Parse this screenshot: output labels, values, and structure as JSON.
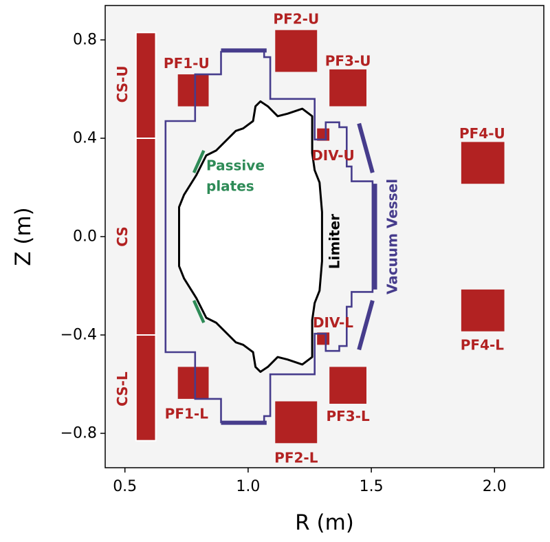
{
  "chart_data": {
    "type": "diagram",
    "xlabel": "R (m)",
    "ylabel": "Z (m)",
    "xlim": [
      0.42,
      2.2
    ],
    "ylim": [
      -0.94,
      0.94
    ],
    "xticks": [
      {
        "value": 0.5,
        "label": "0.5"
      },
      {
        "value": 1.0,
        "label": "1.0"
      },
      {
        "value": 1.5,
        "label": "1.5"
      },
      {
        "value": 2.0,
        "label": "2.0"
      }
    ],
    "yticks": [
      {
        "value": 0.8,
        "label": "0.8"
      },
      {
        "value": 0.4,
        "label": "0.4"
      },
      {
        "value": 0.0,
        "label": "0.0"
      },
      {
        "value": -0.4,
        "label": "−0.4"
      },
      {
        "value": -0.8,
        "label": "−0.8"
      }
    ],
    "colors": {
      "coil": "#b22222",
      "vessel": "#463c8c",
      "passive": "#2e8b57",
      "limiter": "#000000",
      "background": "#f4f4f4",
      "frame": "#000000"
    },
    "coils": [
      {
        "name": "cs-u",
        "label": "CS-U",
        "r": [
          0.545,
          0.625
        ],
        "z": [
          0.4,
          0.83
        ],
        "vertical": true,
        "label_rz": [
          0.49,
          0.62
        ]
      },
      {
        "name": "cs",
        "label": "CS",
        "r": [
          0.545,
          0.625
        ],
        "z": [
          -0.4,
          0.4
        ],
        "vertical": true,
        "label_rz": [
          0.49,
          0.0
        ]
      },
      {
        "name": "cs-l",
        "label": "CS-L",
        "r": [
          0.545,
          0.625
        ],
        "z": [
          -0.83,
          -0.4
        ],
        "vertical": true,
        "label_rz": [
          0.49,
          -0.62
        ]
      },
      {
        "name": "pf1-u",
        "label": "PF1-U",
        "r": [
          0.715,
          0.84
        ],
        "z": [
          0.53,
          0.66
        ],
        "label_rz": [
          0.75,
          0.705
        ]
      },
      {
        "name": "pf1-l",
        "label": "PF1-L",
        "r": [
          0.715,
          0.84
        ],
        "z": [
          -0.66,
          -0.53
        ],
        "label_rz": [
          0.75,
          -0.72
        ]
      },
      {
        "name": "pf2-u",
        "label": "PF2-U",
        "r": [
          1.11,
          1.28
        ],
        "z": [
          0.67,
          0.84
        ],
        "label_rz": [
          1.195,
          0.885
        ]
      },
      {
        "name": "pf2-l",
        "label": "PF2-L",
        "r": [
          1.11,
          1.28
        ],
        "z": [
          -0.84,
          -0.67
        ],
        "label_rz": [
          1.195,
          -0.9
        ]
      },
      {
        "name": "pf3-u",
        "label": "PF3-U",
        "r": [
          1.33,
          1.48
        ],
        "z": [
          0.53,
          0.68
        ],
        "label_rz": [
          1.405,
          0.715
        ]
      },
      {
        "name": "pf3-l",
        "label": "PF3-L",
        "r": [
          1.33,
          1.48
        ],
        "z": [
          -0.68,
          -0.53
        ],
        "label_rz": [
          1.405,
          -0.73
        ]
      },
      {
        "name": "div-u",
        "label": "DIV-U",
        "r": [
          1.28,
          1.33
        ],
        "z": [
          0.39,
          0.44
        ],
        "label_rz": [
          1.345,
          0.33
        ]
      },
      {
        "name": "div-l",
        "label": "DIV-L",
        "r": [
          1.28,
          1.33
        ],
        "z": [
          -0.44,
          -0.39
        ],
        "label_rz": [
          1.345,
          -0.35
        ]
      },
      {
        "name": "pf4-u",
        "label": "PF4-U",
        "r": [
          1.865,
          2.04
        ],
        "z": [
          0.215,
          0.385
        ],
        "label_rz": [
          1.95,
          0.42
        ]
      },
      {
        "name": "pf4-l",
        "label": "PF4-L",
        "r": [
          1.865,
          2.04
        ],
        "z": [
          -0.385,
          -0.215
        ],
        "label_rz": [
          1.95,
          -0.44
        ]
      }
    ],
    "vessel": {
      "label": "Vacuum Vessel",
      "label_rz": [
        1.585,
        0.0
      ],
      "outline_rz": [
        [
          0.89,
          0.755
        ],
        [
          0.89,
          0.66
        ],
        [
          0.785,
          0.66
        ],
        [
          0.785,
          0.47
        ],
        [
          0.665,
          0.47
        ],
        [
          0.665,
          -0.47
        ],
        [
          0.785,
          -0.47
        ],
        [
          0.785,
          -0.66
        ],
        [
          0.89,
          -0.66
        ],
        [
          0.89,
          -0.755
        ],
        [
          1.065,
          -0.755
        ],
        [
          1.065,
          -0.73
        ],
        [
          1.09,
          -0.73
        ],
        [
          1.09,
          -0.56
        ],
        [
          1.27,
          -0.56
        ],
        [
          1.27,
          -0.395
        ],
        [
          1.315,
          -0.395
        ],
        [
          1.315,
          -0.465
        ],
        [
          1.37,
          -0.465
        ],
        [
          1.37,
          -0.445
        ],
        [
          1.4,
          -0.445
        ],
        [
          1.4,
          -0.285
        ],
        [
          1.42,
          -0.285
        ],
        [
          1.42,
          -0.225
        ],
        [
          1.505,
          -0.225
        ],
        [
          1.505,
          0.225
        ],
        [
          1.42,
          0.225
        ],
        [
          1.42,
          0.285
        ],
        [
          1.4,
          0.285
        ],
        [
          1.4,
          0.445
        ],
        [
          1.37,
          0.445
        ],
        [
          1.37,
          0.465
        ],
        [
          1.315,
          0.465
        ],
        [
          1.315,
          0.395
        ],
        [
          1.27,
          0.395
        ],
        [
          1.27,
          0.56
        ],
        [
          1.09,
          0.56
        ],
        [
          1.09,
          0.73
        ],
        [
          1.065,
          0.73
        ],
        [
          1.065,
          0.755
        ],
        [
          0.89,
          0.755
        ]
      ],
      "thick_segments": [
        {
          "name": "vessel-top-plate",
          "points": [
            [
              0.89,
              0.757
            ],
            [
              1.075,
              0.757
            ]
          ]
        },
        {
          "name": "vessel-bottom-plate",
          "points": [
            [
              0.89,
              -0.757
            ],
            [
              1.075,
              -0.757
            ]
          ]
        },
        {
          "name": "vessel-upper-baffle",
          "points": [
            [
              1.45,
              0.46
            ],
            [
              1.505,
              0.26
            ]
          ]
        },
        {
          "name": "vessel-lower-baffle",
          "points": [
            [
              1.505,
              -0.26
            ],
            [
              1.45,
              -0.46
            ]
          ]
        },
        {
          "name": "vessel-outer-wall",
          "points": [
            [
              1.515,
              0.215
            ],
            [
              1.515,
              -0.215
            ]
          ]
        }
      ]
    },
    "limiter": {
      "label": "Limiter",
      "label_rz": [
        1.35,
        -0.02
      ],
      "outline_rz": [
        [
          1.05,
          0.55
        ],
        [
          1.08,
          0.53
        ],
        [
          1.12,
          0.49
        ],
        [
          1.16,
          0.5
        ],
        [
          1.22,
          0.52
        ],
        [
          1.26,
          0.49
        ],
        [
          1.26,
          0.34
        ],
        [
          1.27,
          0.27
        ],
        [
          1.29,
          0.22
        ],
        [
          1.3,
          0.1
        ],
        [
          1.3,
          -0.1
        ],
        [
          1.29,
          -0.22
        ],
        [
          1.27,
          -0.27
        ],
        [
          1.26,
          -0.34
        ],
        [
          1.26,
          -0.49
        ],
        [
          1.22,
          -0.52
        ],
        [
          1.16,
          -0.5
        ],
        [
          1.12,
          -0.49
        ],
        [
          1.08,
          -0.53
        ],
        [
          1.05,
          -0.55
        ],
        [
          1.03,
          -0.53
        ],
        [
          1.02,
          -0.47
        ],
        [
          0.98,
          -0.44
        ],
        [
          0.95,
          -0.43
        ],
        [
          0.87,
          -0.35
        ],
        [
          0.83,
          -0.33
        ],
        [
          0.79,
          -0.25
        ],
        [
          0.74,
          -0.17
        ],
        [
          0.72,
          -0.12
        ],
        [
          0.72,
          0.12
        ],
        [
          0.74,
          0.17
        ],
        [
          0.79,
          0.25
        ],
        [
          0.83,
          0.33
        ],
        [
          0.87,
          0.35
        ],
        [
          0.95,
          0.43
        ],
        [
          0.98,
          0.44
        ],
        [
          1.02,
          0.47
        ],
        [
          1.03,
          0.53
        ],
        [
          1.05,
          0.55
        ]
      ]
    },
    "passive_plates": {
      "label_lines": [
        "Passive",
        "plates"
      ],
      "label_rz": [
        0.83,
        0.27
      ],
      "segments": [
        {
          "name": "passive-plate-upper-left",
          "points": [
            [
              0.78,
              0.26
            ],
            [
              0.82,
              0.35
            ]
          ]
        },
        {
          "name": "passive-plate-lower-left",
          "points": [
            [
              0.78,
              -0.26
            ],
            [
              0.82,
              -0.35
            ]
          ]
        },
        {
          "name": "passive-plate-upper-right",
          "points": [
            [
              1.27,
              0.25
            ],
            [
              1.28,
              0.21
            ]
          ]
        },
        {
          "name": "passive-plate-lower-right",
          "points": [
            [
              1.27,
              -0.25
            ],
            [
              1.28,
              -0.21
            ]
          ]
        }
      ]
    }
  }
}
